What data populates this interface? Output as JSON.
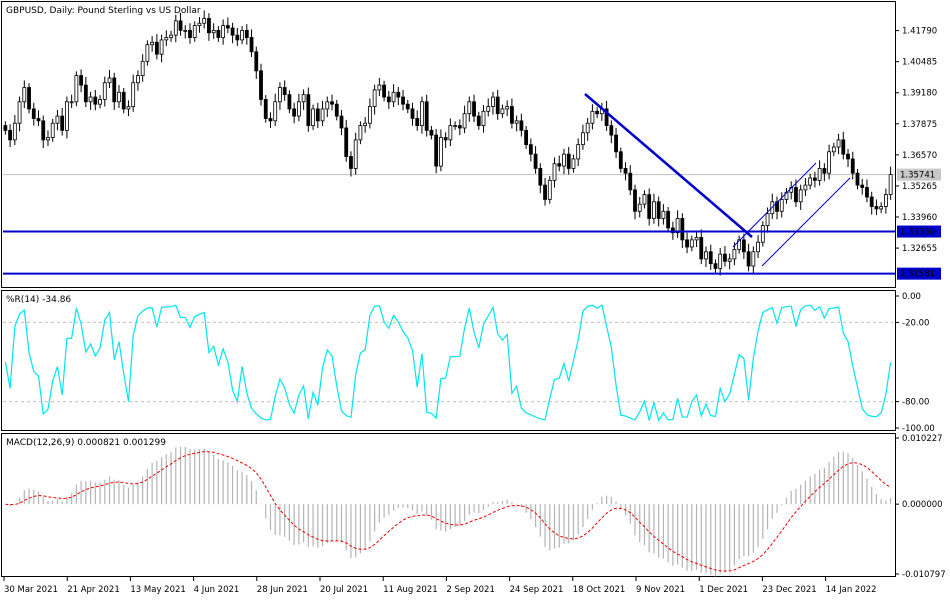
{
  "chart_data": {
    "type": "candlestick",
    "price_panel": {
      "title": "GBPUSD, Daily:  Pound Sterling vs US Dollar",
      "ylim": [
        1.3102,
        1.4295
      ],
      "y_ticks": [
        "1.41790",
        "1.40485",
        "1.39180",
        "1.37875",
        "1.36570",
        "1.35265",
        "1.33960",
        "1.32655"
      ],
      "current_price": "1.35741",
      "support_line_upper": "1.33350",
      "support_line_lower": "1.31581",
      "series_close": [
        1.376,
        1.372,
        1.379,
        1.388,
        1.394,
        1.385,
        1.381,
        1.38,
        1.372,
        1.373,
        1.379,
        1.382,
        1.376,
        1.388,
        1.388,
        1.399,
        1.395,
        1.388,
        1.39,
        1.387,
        1.389,
        1.396,
        1.398,
        1.388,
        1.392,
        1.385,
        1.386,
        1.396,
        1.399,
        1.405,
        1.412,
        1.413,
        1.408,
        1.414,
        1.415,
        1.416,
        1.422,
        1.418,
        1.418,
        1.415,
        1.42,
        1.421,
        1.423,
        1.417,
        1.418,
        1.415,
        1.42,
        1.419,
        1.416,
        1.414,
        1.418,
        1.415,
        1.409,
        1.401,
        1.389,
        1.381,
        1.38,
        1.388,
        1.394,
        1.391,
        1.385,
        1.382,
        1.388,
        1.391,
        1.378,
        1.385,
        1.38,
        1.385,
        1.388,
        1.387,
        1.382,
        1.377,
        1.365,
        1.36,
        1.372,
        1.378,
        1.379,
        1.386,
        1.393,
        1.395,
        1.39,
        1.388,
        1.392,
        1.39,
        1.387,
        1.385,
        1.381,
        1.378,
        1.388,
        1.376,
        1.374,
        1.361,
        1.373,
        1.372,
        1.378,
        1.378,
        1.377,
        1.383,
        1.388,
        1.382,
        1.378,
        1.384,
        1.386,
        1.39,
        1.383,
        1.385,
        1.386,
        1.379,
        1.38,
        1.376,
        1.37,
        1.366,
        1.36,
        1.353,
        1.347,
        1.355,
        1.362,
        1.361,
        1.366,
        1.36,
        1.364,
        1.37,
        1.375,
        1.379,
        1.384,
        1.383,
        1.385,
        1.378,
        1.374,
        1.367,
        1.36,
        1.358,
        1.351,
        1.342,
        1.345,
        1.349,
        1.339,
        1.346,
        1.339,
        1.342,
        1.335,
        1.333,
        1.339,
        1.33,
        1.327,
        1.33,
        1.331,
        1.322,
        1.325,
        1.32,
        1.318,
        1.324,
        1.321,
        1.322,
        1.326,
        1.33,
        1.325,
        1.319,
        1.325,
        1.329,
        1.336,
        1.341,
        1.346,
        1.342,
        1.347,
        1.35,
        1.352,
        1.346,
        1.351,
        1.353,
        1.356,
        1.355,
        1.36,
        1.358,
        1.367,
        1.369,
        1.372,
        1.366,
        1.364,
        1.358,
        1.353,
        1.352,
        1.348,
        1.344,
        1.343,
        1.344,
        1.349,
        1.3574
      ]
    },
    "williams_r": {
      "label": "%R(14) -34.86",
      "ylim": [
        -100,
        0
      ],
      "y_ticks": [
        "0.00",
        "-20.00",
        "-80.00",
        "-100.00"
      ]
    },
    "macd": {
      "label": "MACD(12,26,9) 0.000821 0.001299",
      "ylim": [
        -0.010797,
        0.010227
      ],
      "y_ticks": [
        "0.010227",
        "0.000000",
        "-0.010797"
      ]
    },
    "x_tick_labels": [
      "30 Mar 2021",
      "21 Apr 2021",
      "13 May 2021",
      "4 Jun 2021",
      "28 Jun 2021",
      "20 Jul 2021",
      "11 Aug 2021",
      "2 Sep 2021",
      "24 Sep 2021",
      "18 Oct 2021",
      "9 Nov 2021",
      "1 Dec 2021",
      "23 Dec 2021",
      "14 Jan 2022"
    ],
    "colors": {
      "price_line": "#0000cc",
      "williams": "#00e5ee",
      "macd_hist": "#b4b4b4",
      "macd_signal": "#ee0000",
      "grid_level": "#c0c0c0"
    }
  }
}
